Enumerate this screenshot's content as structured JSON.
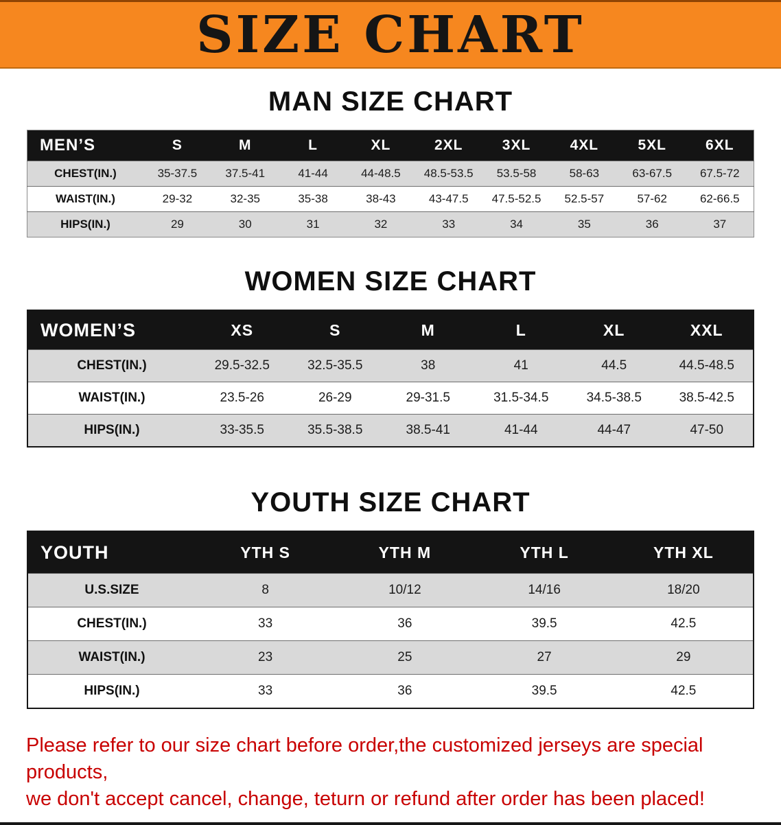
{
  "banner": {
    "title": "SIZE CHART"
  },
  "colors": {
    "banner_bg": "#f6871f",
    "header_bg": "#141414",
    "row_alt_bg": "#d9d9d9",
    "notice_text": "#c80000"
  },
  "sections": [
    {
      "key": "men",
      "heading": "MAN SIZE CHART",
      "table": {
        "header": [
          "MEN’S",
          "S",
          "M",
          "L",
          "XL",
          "2XL",
          "3XL",
          "4XL",
          "5XL",
          "6XL"
        ],
        "rows": [
          {
            "label": "CHEST(IN.)",
            "values": [
              "35-37.5",
              "37.5-41",
              "41-44",
              "44-48.5",
              "48.5-53.5",
              "53.5-58",
              "58-63",
              "63-67.5",
              "67.5-72"
            ]
          },
          {
            "label": "WAIST(IN.)",
            "values": [
              "29-32",
              "32-35",
              "35-38",
              "38-43",
              "43-47.5",
              "47.5-52.5",
              "52.5-57",
              "57-62",
              "62-66.5"
            ]
          },
          {
            "label": "HIPS(IN.)",
            "values": [
              "29",
              "30",
              "31",
              "32",
              "33",
              "34",
              "35",
              "36",
              "37"
            ]
          }
        ]
      }
    },
    {
      "key": "women",
      "heading": "WOMEN SIZE CHART",
      "table": {
        "header": [
          "WOMEN’S",
          "XS",
          "S",
          "M",
          "L",
          "XL",
          "XXL"
        ],
        "rows": [
          {
            "label": "CHEST(IN.)",
            "values": [
              "29.5-32.5",
              "32.5-35.5",
              "38",
              "41",
              "44.5",
              "44.5-48.5"
            ]
          },
          {
            "label": "WAIST(IN.)",
            "values": [
              "23.5-26",
              "26-29",
              "29-31.5",
              "31.5-34.5",
              "34.5-38.5",
              "38.5-42.5"
            ]
          },
          {
            "label": "HIPS(IN.)",
            "values": [
              "33-35.5",
              "35.5-38.5",
              "38.5-41",
              "41-44",
              "44-47",
              "47-50"
            ]
          }
        ]
      }
    },
    {
      "key": "youth",
      "heading": "YOUTH SIZE CHART",
      "table": {
        "header": [
          "YOUTH",
          "YTH S",
          "YTH M",
          "YTH L",
          "YTH XL"
        ],
        "rows": [
          {
            "label": "U.S.SIZE",
            "values": [
              "8",
              "10/12",
              "14/16",
              "18/20"
            ]
          },
          {
            "label": "CHEST(IN.)",
            "values": [
              "33",
              "36",
              "39.5",
              "42.5"
            ]
          },
          {
            "label": "WAIST(IN.)",
            "values": [
              "23",
              "25",
              "27",
              "29"
            ]
          },
          {
            "label": "HIPS(IN.)",
            "values": [
              "33",
              "36",
              "39.5",
              "42.5"
            ]
          }
        ]
      }
    }
  ],
  "footer": {
    "lines": [
      "Please refer to our size chart before order,the customized jerseys are special products,",
      "we don't accept cancel, change, teturn or refund after order has been placed!"
    ]
  }
}
